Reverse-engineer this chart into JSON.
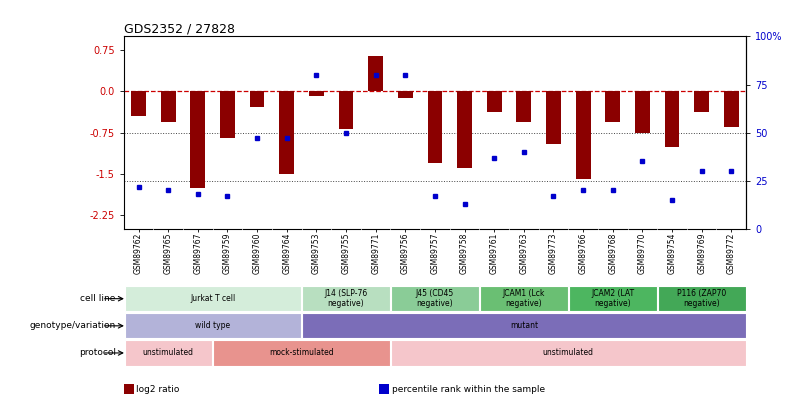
{
  "title": "GDS2352 / 27828",
  "samples": [
    "GSM89762",
    "GSM89765",
    "GSM89767",
    "GSM89759",
    "GSM89760",
    "GSM89764",
    "GSM89753",
    "GSM89755",
    "GSM89771",
    "GSM89756",
    "GSM89757",
    "GSM89758",
    "GSM89761",
    "GSM89763",
    "GSM89773",
    "GSM89766",
    "GSM89768",
    "GSM89770",
    "GSM89754",
    "GSM89769",
    "GSM89772"
  ],
  "log2_ratio": [
    -0.45,
    -0.55,
    -1.75,
    -0.85,
    -0.28,
    -1.5,
    -0.08,
    -0.68,
    0.65,
    -0.12,
    -1.3,
    -1.4,
    -0.38,
    -0.55,
    -0.95,
    -1.6,
    -0.55,
    -0.75,
    -1.02,
    -0.38,
    -0.65
  ],
  "percentile": [
    22,
    20,
    18,
    17,
    47,
    47,
    80,
    50,
    80,
    80,
    17,
    13,
    37,
    40,
    17,
    20,
    20,
    35,
    15,
    30,
    30
  ],
  "ylim_left": [
    -2.5,
    1.0
  ],
  "ylim_right": [
    0,
    100
  ],
  "yticks_left": [
    0.75,
    0.0,
    -0.75,
    -1.5,
    -2.25
  ],
  "yticks_right": [
    100,
    75,
    50,
    25,
    0
  ],
  "bar_color": "#8B0000",
  "dot_color": "#0000CC",
  "zero_line_color": "#CC0000",
  "cell_line_groups": [
    {
      "label": "Jurkat T cell",
      "start": 0,
      "end": 5,
      "color": "#d4edda"
    },
    {
      "label": "J14 (SLP-76\nnegative)",
      "start": 6,
      "end": 8,
      "color": "#b8dfc0"
    },
    {
      "label": "J45 (CD45\nnegative)",
      "start": 9,
      "end": 11,
      "color": "#8acc97"
    },
    {
      "label": "JCAM1 (Lck\nnegative)",
      "start": 12,
      "end": 14,
      "color": "#6abf73"
    },
    {
      "label": "JCAM2 (LAT\nnegative)",
      "start": 15,
      "end": 17,
      "color": "#4db660"
    },
    {
      "label": "P116 (ZAP70\nnegative)",
      "start": 18,
      "end": 20,
      "color": "#43a857"
    }
  ],
  "genotype_groups": [
    {
      "label": "wild type",
      "start": 0,
      "end": 5,
      "color": "#b3b3d9"
    },
    {
      "label": "mutant",
      "start": 6,
      "end": 20,
      "color": "#7b6db8"
    }
  ],
  "protocol_groups": [
    {
      "label": "unstimulated",
      "start": 0,
      "end": 2,
      "color": "#f5c6cb"
    },
    {
      "label": "mock-stimulated",
      "start": 3,
      "end": 8,
      "color": "#e8938e"
    },
    {
      "label": "unstimulated",
      "start": 9,
      "end": 20,
      "color": "#f5c6cb"
    }
  ],
  "legend_items": [
    {
      "color": "#8B0000",
      "label": "log2 ratio"
    },
    {
      "color": "#0000CC",
      "label": "percentile rank within the sample"
    }
  ]
}
